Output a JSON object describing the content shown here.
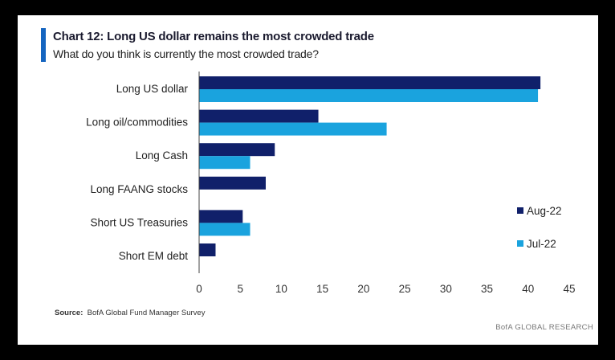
{
  "header": {
    "title": "Chart 12: Long US dollar remains the most crowded trade",
    "subtitle": "What do you think is currently the most crowded trade?"
  },
  "footer": {
    "source_label": "Source:",
    "source_text": "BofA Global Fund Manager Survey",
    "brand": "BofA GLOBAL RESEARCH"
  },
  "colors": {
    "accent": "#1565c0",
    "aug22": "#10206a",
    "jul22": "#1aa3de"
  },
  "chart_data": {
    "type": "bar",
    "orientation": "horizontal",
    "title": "Chart 12: Long US dollar remains the most crowded trade",
    "subtitle": "What do you think is currently the most crowded trade?",
    "categories": [
      "Long US dollar",
      "Long oil/commodities",
      "Long Cash",
      "Long FAANG stocks",
      "Short US Treasuries",
      "Short EM debt"
    ],
    "series": [
      {
        "name": "Aug-22",
        "color": "#10206a",
        "values": [
          41.5,
          14.5,
          9.2,
          8.1,
          5.3,
          2.0
        ]
      },
      {
        "name": "Jul-22",
        "color": "#1aa3de",
        "values": [
          41.2,
          22.8,
          6.2,
          null,
          6.2,
          null
        ]
      }
    ],
    "xlim": [
      0,
      45
    ],
    "xticks": [
      "0",
      "5",
      "10",
      "15",
      "20",
      "25",
      "30",
      "35",
      "40",
      "45"
    ],
    "xlabel": "",
    "ylabel": "",
    "grid": false,
    "legend_position": "right"
  }
}
